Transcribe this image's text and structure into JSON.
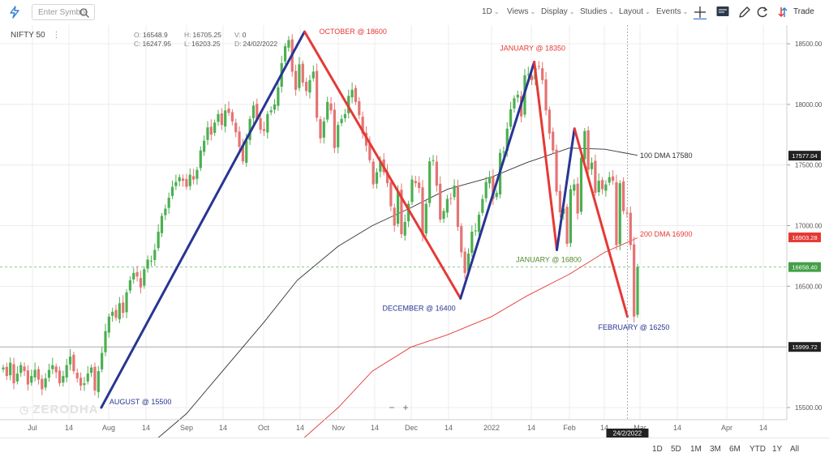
{
  "toolbar": {
    "search_placeholder": "Enter Symbol",
    "menus": [
      "1D",
      "Views",
      "Display",
      "Studies",
      "Layout",
      "Events"
    ],
    "trade_label": "Trade"
  },
  "symbol": {
    "name": "NIFTY 50"
  },
  "ohlc": {
    "o_label": "O:",
    "o": "16548.9",
    "h_label": "H:",
    "h": "16705.25",
    "v_label": "V:",
    "v": "0",
    "c_label": "C:",
    "c": "16247.95",
    "l_label": "L:",
    "l": "16203.25",
    "d_label": "D:",
    "d": "24/02/2022"
  },
  "watermark": "ZERODHA",
  "ranges": [
    "1D",
    "5D",
    "1M",
    "3M",
    "6M",
    "YTD",
    "1Y",
    "All"
  ],
  "chart_data": {
    "type": "candlestick",
    "x_ticks": [
      "Jul",
      "14",
      "Aug",
      "14",
      "Sep",
      "14",
      "Oct",
      "14",
      "Nov",
      "14",
      "Dec",
      "14",
      "2022",
      "14",
      "Feb",
      "14",
      "Mar",
      "14",
      "Apr",
      "14"
    ],
    "y_ticks": [
      "18500.00",
      "18000.00",
      "17500.00",
      "17000.00",
      "16500.00",
      "15500.00"
    ],
    "price_labels": [
      {
        "text": "17577.04",
        "value": 17577.04,
        "color": "#222222"
      },
      {
        "text": "16903.28",
        "value": 16903.28,
        "color": "#e53935"
      },
      {
        "text": "16658.40",
        "value": 16658.4,
        "color": "#43a047"
      },
      {
        "text": "15999.72",
        "value": 15999.72,
        "color": "#222222"
      }
    ],
    "crosshair_date": "24/2/2022",
    "swing_points": [
      {
        "date": "2021-07-29",
        "price": 15500,
        "label": "AUGUST @ 15500"
      },
      {
        "date": "2021-10-18",
        "price": 18600,
        "label": "OCTOBER @ 18600"
      },
      {
        "date": "2021-12-20",
        "price": 16400,
        "label": "DECEMBER @ 16400"
      },
      {
        "date": "2022-01-18",
        "price": 18350,
        "label": "JANUARY @ 18350"
      },
      {
        "date": "2022-01-27",
        "price": 16800,
        "label": "JANUARY @ 16800"
      },
      {
        "date": "2022-02-03",
        "price": 17800,
        "label": ""
      },
      {
        "date": "2022-02-24",
        "price": 16250,
        "label": "FEBRUARY @ 16250"
      }
    ],
    "moving_averages": [
      {
        "name": "100 DMA",
        "label": "100 DMA  17580",
        "value": 17580,
        "color": "#333333"
      },
      {
        "name": "200 DMA",
        "label": "200 DMA  16900",
        "value": 16900,
        "color": "#e53935"
      }
    ],
    "series": [
      {
        "name": "NIFTY 50",
        "closes": [
          15830,
          15760,
          15870,
          15700,
          15780,
          15850,
          15800,
          15690,
          15760,
          15810,
          15730,
          15650,
          15740,
          15810,
          15850,
          15790,
          15700,
          15760,
          15850,
          15920,
          15800,
          15740,
          15680,
          15700,
          15780,
          15830,
          15640,
          15800,
          15950,
          16130,
          16250,
          16290,
          16240,
          16360,
          16280,
          16450,
          16550,
          16610,
          16580,
          16490,
          16640,
          16720,
          16710,
          16800,
          16950,
          17080,
          17140,
          17230,
          17320,
          17360,
          17400,
          17370,
          17320,
          17420,
          17380,
          17460,
          17620,
          17700,
          17810,
          17750,
          17850,
          17920,
          17830,
          17950,
          17930,
          17860,
          17770,
          17650,
          17530,
          17700,
          17880,
          17990,
          17880,
          17790,
          17780,
          17920,
          17950,
          18000,
          18140,
          18340,
          18480,
          18530,
          18270,
          18120,
          18330,
          18180,
          18110,
          18200,
          18270,
          17890,
          17720,
          17860,
          18020,
          17950,
          17640,
          17830,
          17880,
          17920,
          18070,
          18120,
          18020,
          17910,
          17760,
          17660,
          17540,
          17340,
          17440,
          17530,
          17440,
          17350,
          17160,
          17000,
          17290,
          16930,
          17030,
          17180,
          17380,
          17350,
          17310,
          16920,
          17180,
          17530,
          17540,
          17330,
          17050,
          17120,
          17220,
          17220,
          17330,
          16990,
          16780,
          16610,
          16770,
          16950,
          16960,
          17090,
          17220,
          17360,
          17400,
          17220,
          17270,
          17600,
          17610,
          17800,
          17960,
          18050,
          18080,
          17900,
          18240,
          18250,
          18200,
          18300,
          18310,
          18200,
          17950,
          17760,
          17620,
          17280,
          17110,
          17140,
          16850,
          17300,
          17340,
          17100,
          17560,
          17780,
          17460,
          17520,
          17270,
          17370,
          17300,
          17340,
          17400,
          17370,
          16840,
          17350,
          17120,
          17100,
          16840,
          16250,
          16660
        ]
      }
    ]
  }
}
